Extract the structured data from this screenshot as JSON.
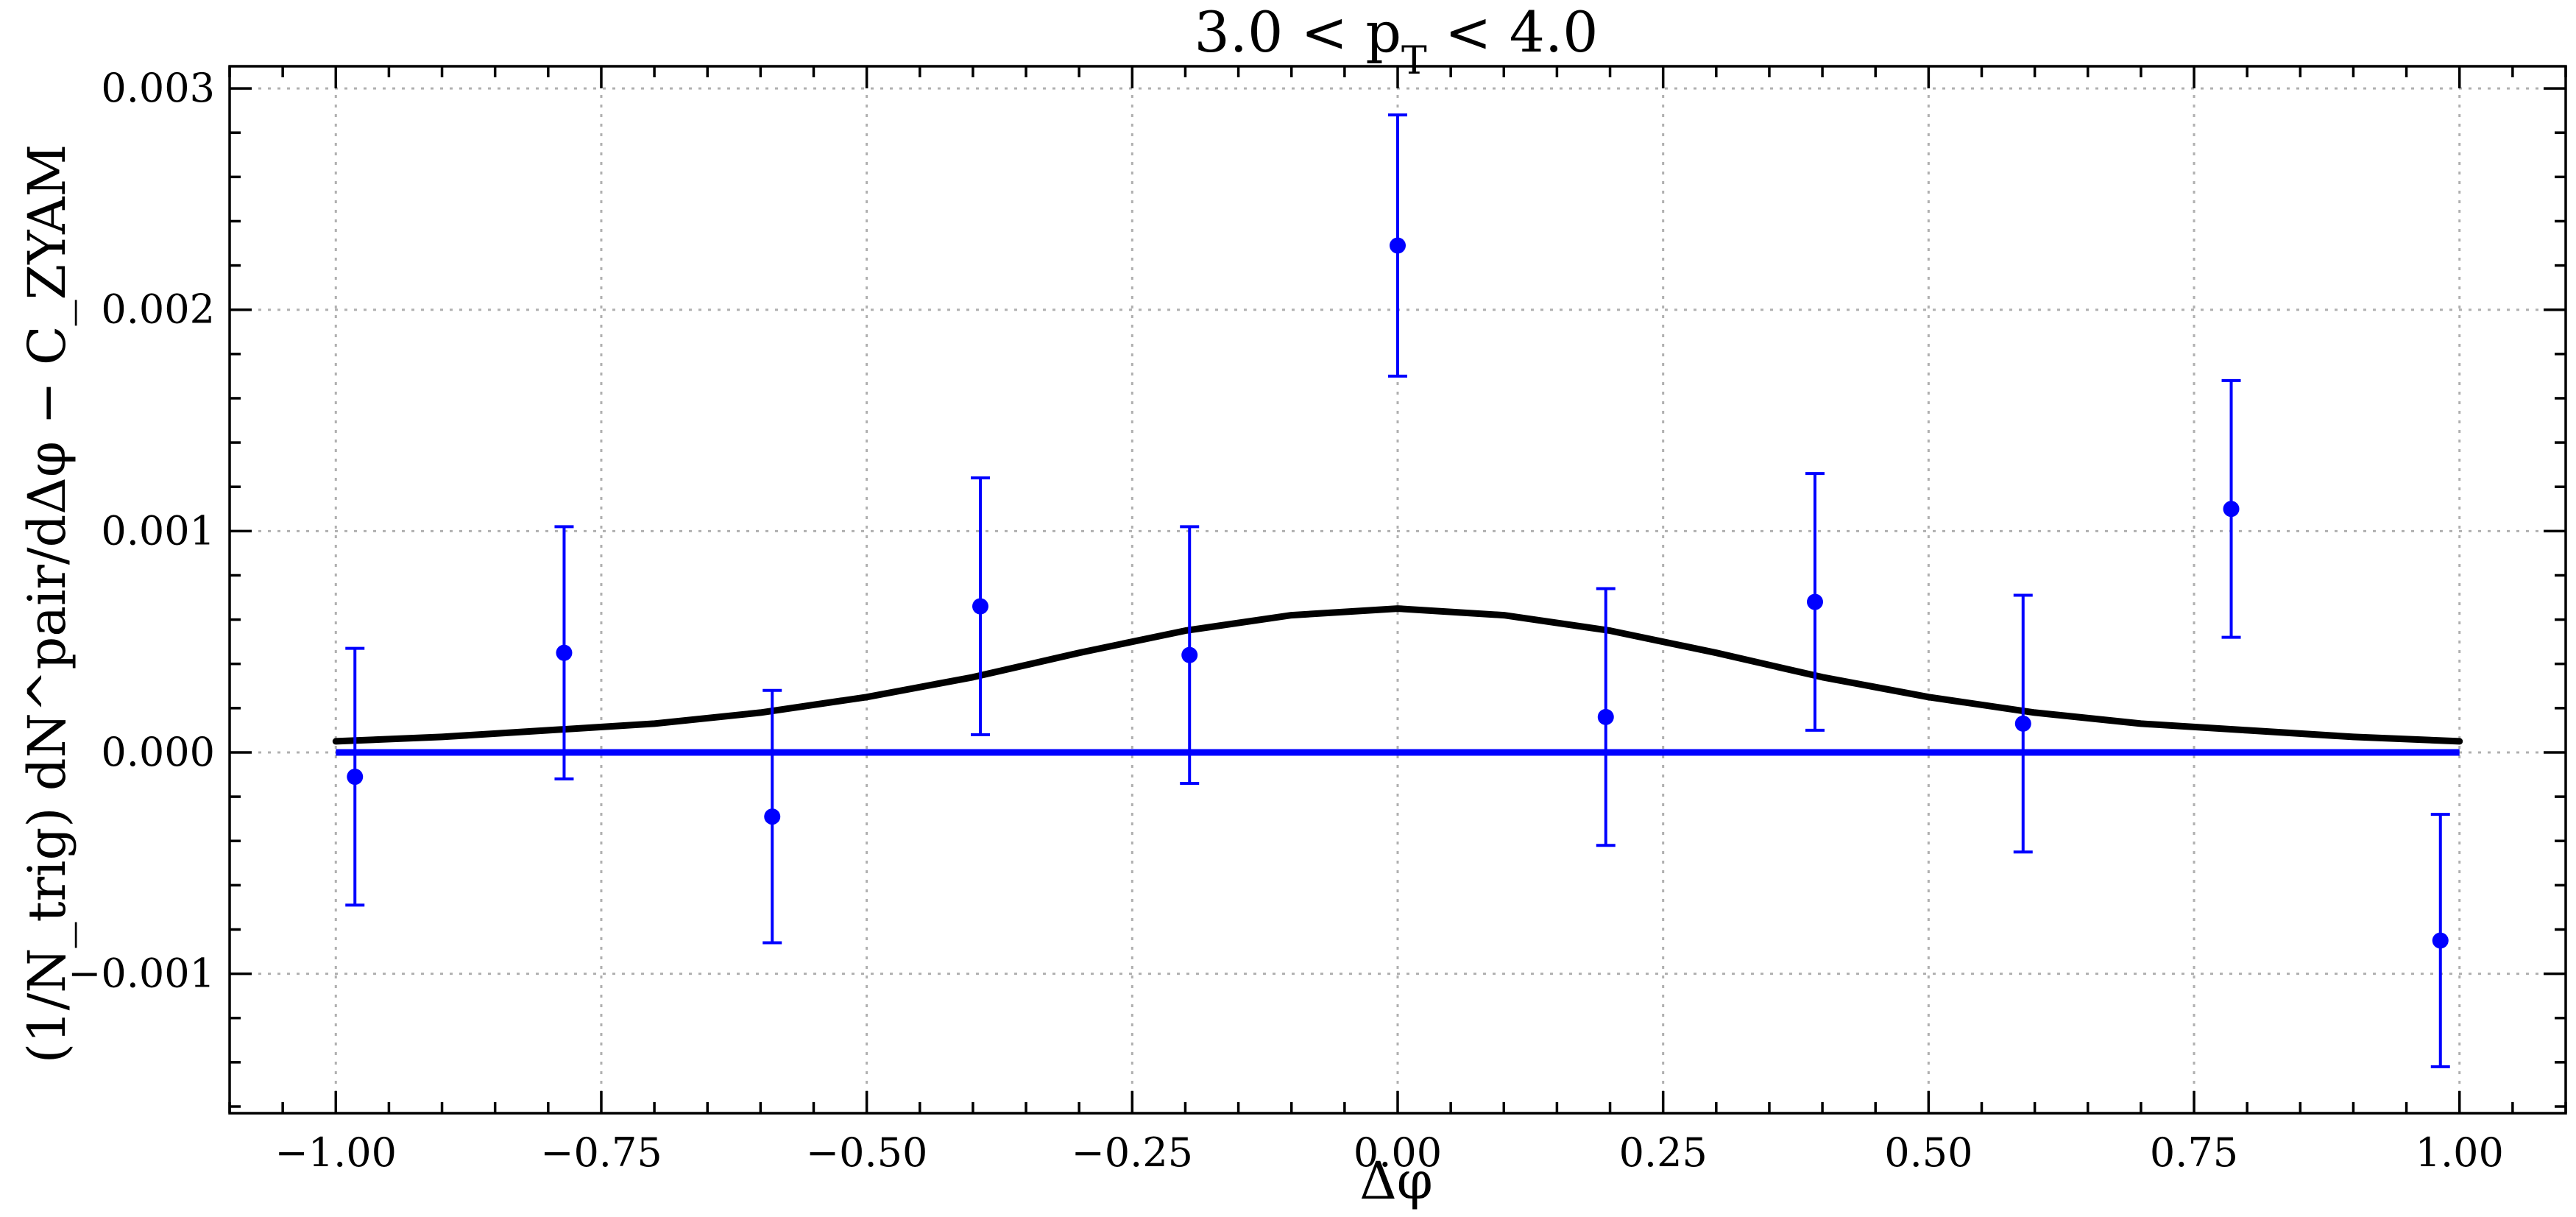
{
  "chart_data": {
    "type": "scatter",
    "title": "3.0 < pT < 4.0",
    "xlabel": "Δφ",
    "ylabel": "(1/N_trig) dN^pair/dΔφ − C_ZYAM",
    "xlim": [
      -1.1,
      1.1
    ],
    "ylim": [
      -0.00163,
      0.0031
    ],
    "x_ticks": [
      -1.0,
      -0.75,
      -0.5,
      -0.25,
      0.0,
      0.25,
      0.5,
      0.75,
      1.0
    ],
    "x_tick_labels": [
      "−1.00",
      "−0.75",
      "−0.50",
      "−0.25",
      "0.00",
      "0.25",
      "0.50",
      "0.75",
      "1.00"
    ],
    "y_ticks": [
      -0.001,
      0.0,
      0.001,
      0.002,
      0.003
    ],
    "y_tick_labels": [
      "−0.001",
      "0.000",
      "0.001",
      "0.002",
      "0.003"
    ],
    "grid": true,
    "series": [
      {
        "kind": "errorbar",
        "color": "#0000ff",
        "x": [
          -0.982,
          -0.785,
          -0.589,
          -0.393,
          -0.196,
          0.0,
          0.196,
          0.393,
          0.589,
          0.785,
          0.982
        ],
        "y": [
          -0.00011,
          0.00045,
          -0.00029,
          0.00066,
          0.00044,
          0.00229,
          0.00016,
          0.00068,
          0.00013,
          0.0011,
          -0.00085
        ],
        "yerr": [
          0.00058,
          0.00057,
          0.00057,
          0.00058,
          0.00058,
          0.00059,
          0.00058,
          0.00058,
          0.00058,
          0.00058,
          0.00057
        ]
      },
      {
        "kind": "line",
        "color": "#0000ff",
        "x": [
          -1.0,
          1.0
        ],
        "y": [
          0.0,
          0.0
        ]
      },
      {
        "kind": "curve",
        "color": "#000000",
        "x": [
          -1.0,
          -0.9,
          -0.8,
          -0.7,
          -0.6,
          -0.5,
          -0.4,
          -0.3,
          -0.2,
          -0.1,
          0.0,
          0.1,
          0.2,
          0.3,
          0.4,
          0.5,
          0.6,
          0.7,
          0.8,
          0.9,
          1.0
        ],
        "y": [
          5e-05,
          7e-05,
          0.0001,
          0.00013,
          0.00018,
          0.00025,
          0.00034,
          0.00045,
          0.00055,
          0.00062,
          0.00065,
          0.00062,
          0.00055,
          0.00045,
          0.00034,
          0.00025,
          0.00018,
          0.00013,
          0.0001,
          7e-05,
          5e-05
        ]
      }
    ]
  }
}
